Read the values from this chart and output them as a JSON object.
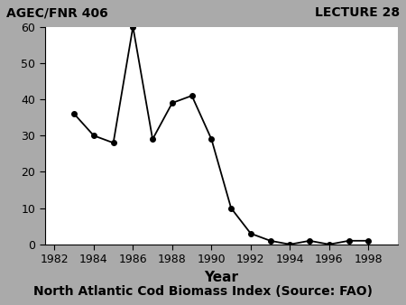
{
  "years": [
    1983,
    1984,
    1985,
    1986,
    1987,
    1988,
    1989,
    1990,
    1991,
    1992,
    1993,
    1994,
    1995,
    1996,
    1997,
    1998
  ],
  "values": [
    36,
    30,
    28,
    60,
    29,
    39,
    41,
    29,
    10,
    3,
    1,
    0,
    1,
    0,
    1,
    1
  ],
  "line_color": "#000000",
  "marker": "o",
  "marker_size": 4,
  "marker_facecolor": "#000000",
  "xlim": [
    1981.5,
    1999.5
  ],
  "ylim": [
    0,
    60
  ],
  "xticks": [
    1982,
    1984,
    1986,
    1988,
    1990,
    1992,
    1994,
    1996,
    1998
  ],
  "yticks": [
    0,
    10,
    20,
    30,
    40,
    50,
    60
  ],
  "xlabel": "Year",
  "xlabel_fontsize": 11,
  "xlabel_fontweight": "bold",
  "tick_fontsize": 9,
  "header_left": "AGEC/FNR 406",
  "header_right": "LECTURE 28",
  "header_fontsize": 10,
  "header_fontweight": "bold",
  "header_bg": "#aaaaaa",
  "footer_text": "North Atlantic Cod Biomass Index (Source: FAO)",
  "footer_fontsize": 10,
  "footer_fontweight": "bold",
  "footer_bg": "#aaaaaa",
  "plot_bg": "#ffffff",
  "fig_bg": "#aaaaaa",
  "linewidth": 1.3
}
